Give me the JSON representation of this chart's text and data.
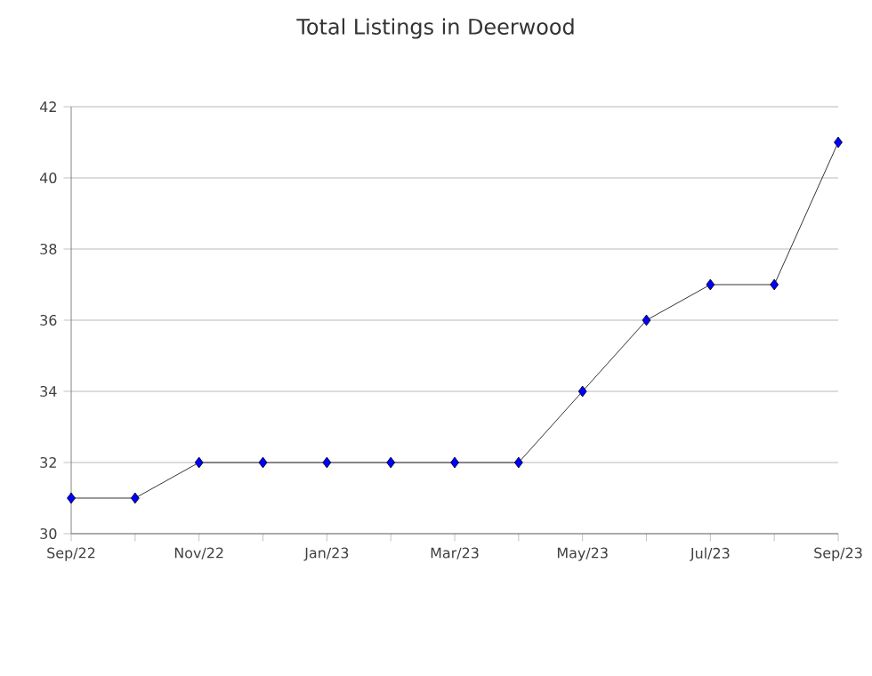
{
  "chart_data": {
    "type": "line",
    "title": "Total Listings in Deerwood",
    "categories": [
      "Sep/22",
      null,
      "Nov/22",
      null,
      "Jan/23",
      null,
      "Mar/23",
      null,
      "May/23",
      null,
      "Jul/23",
      null,
      "Sep/23"
    ],
    "series": [
      {
        "color": "#0000ff",
        "values": [
          31,
          31,
          32,
          32,
          32,
          32,
          32,
          32,
          34,
          36,
          37,
          37,
          41
        ]
      }
    ],
    "ylim": [
      30,
      42
    ],
    "yticks": [
      30,
      32,
      34,
      36,
      38,
      40,
      42
    ],
    "grid": "y",
    "marker": "diamond",
    "line_style": "solid"
  }
}
